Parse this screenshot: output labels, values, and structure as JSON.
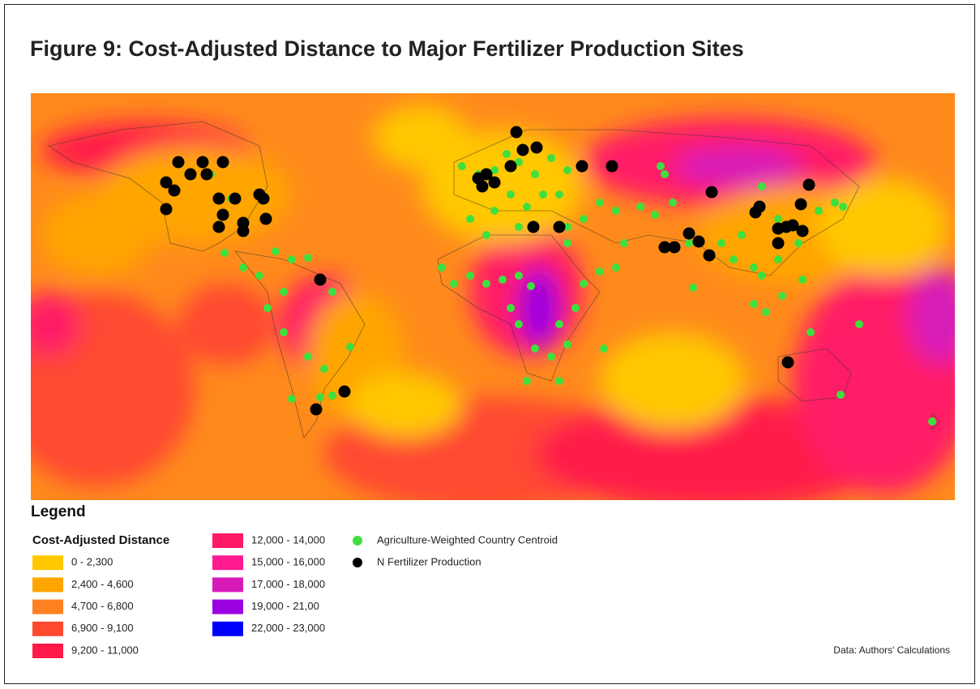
{
  "title": "Figure 9: Cost-Adjusted Distance to Major Fertilizer Production Sites",
  "legend": {
    "heading": "Legend",
    "scale_title": "Cost-Adjusted Distance",
    "scale_items": [
      {
        "label": "0 - 2,300",
        "color": "#ffc800"
      },
      {
        "label": "2,400 - 4,600",
        "color": "#ffa500"
      },
      {
        "label": "4,700 - 6,800",
        "color": "#ff8020"
      },
      {
        "label": "6,900 - 9,100",
        "color": "#ff4a30"
      },
      {
        "label": "9,200 - 11,000",
        "color": "#ff1a4a"
      },
      {
        "label": "12,000 - 14,000",
        "color": "#ff1a66"
      },
      {
        "label": "15,000 - 16,000",
        "color": "#ff1a90"
      },
      {
        "label": "17,000 - 18,000",
        "color": "#d81ab8"
      },
      {
        "label": "19,000 - 21,00",
        "color": "#9a00e0"
      },
      {
        "label": "22,000 - 23,000",
        "color": "#0000ff"
      }
    ],
    "point_items": [
      {
        "label": "Agriculture-Weighted Country Centroid",
        "color": "#3ee03e"
      },
      {
        "label": "N Fertilizer Production",
        "color": "#000000"
      }
    ]
  },
  "source": "Data: Authors' Calculations"
}
